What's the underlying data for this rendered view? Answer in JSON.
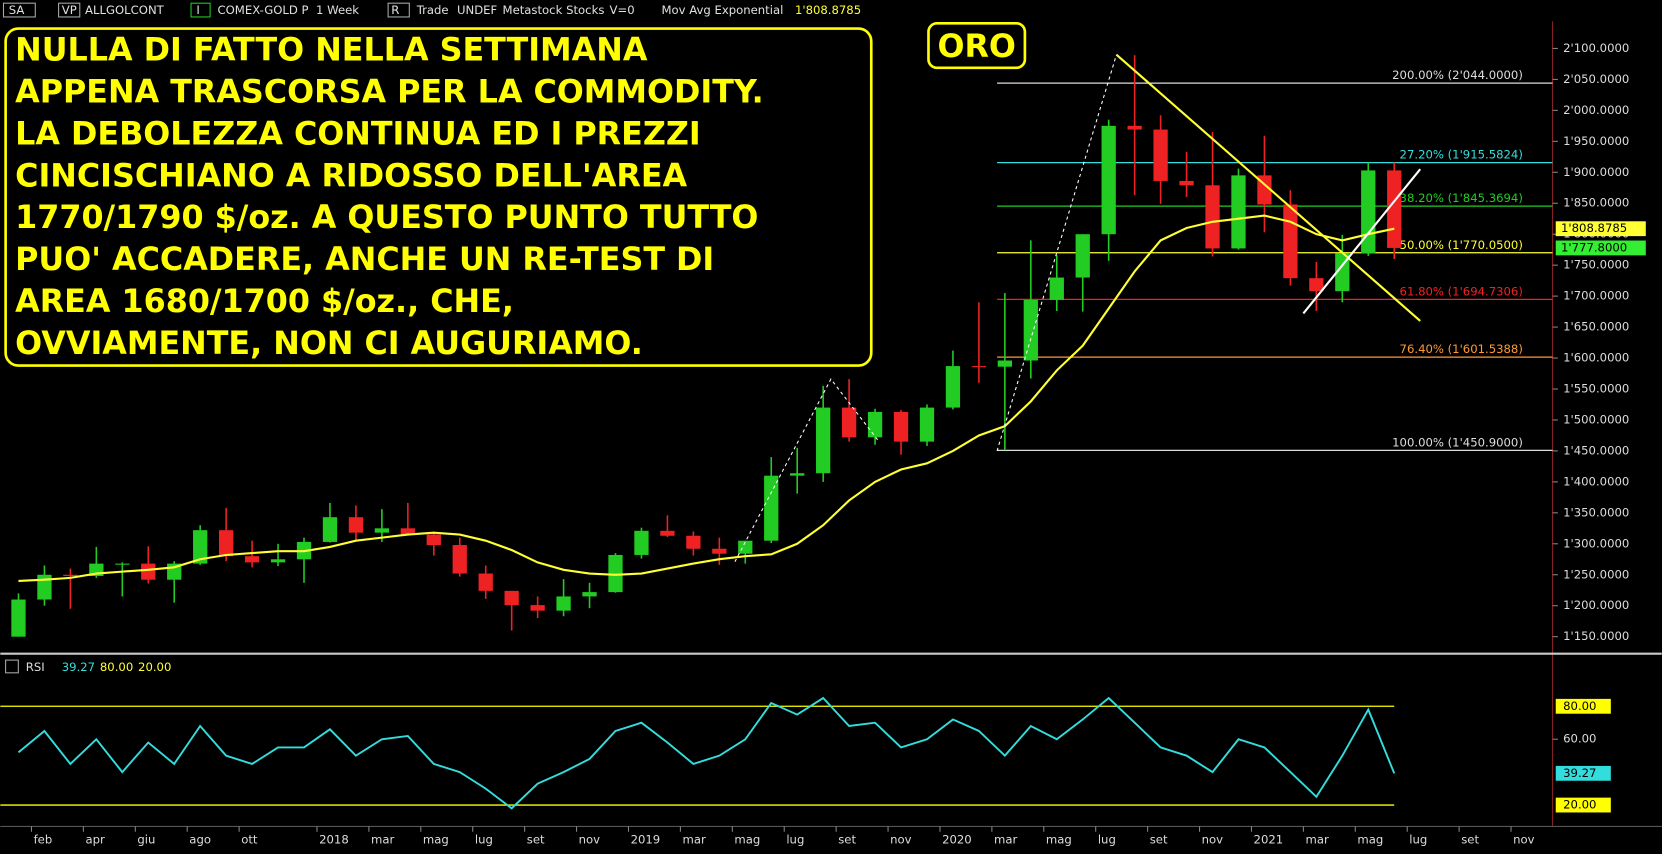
{
  "chart_data": {
    "type": "candlestick",
    "header": [
      "SA",
      "VP",
      "ALLGOLCONT",
      "I",
      "COMEX-GOLD P",
      "1 Week",
      "R",
      "Trade",
      "UNDEF",
      "Metastock",
      "Stocks",
      "V=0",
      "Mov Avg Exponential",
      "1'808.8785"
    ],
    "annotation": [
      "NULLA DI FATTO NELLA SETTIMANA",
      "APPENA TRASCORSA PER LA COMMODITY.",
      "LA DEBOLEZZA CONTINUA ED I PREZZI",
      "CINCISCHIANO A RIDOSSO DELL'AREA",
      "1770/1790 $/oz. A QUESTO PUNTO TUTTO",
      "PUO' ACCADERE, ANCHE UN RE-TEST DI",
      "AREA 1680/1700 $/oz., CHE,",
      "OVVIAMENTE, NON CI AUGURIAMO."
    ],
    "tag": "ORO",
    "x": [
      0.5,
      1.5,
      2.5,
      3.5,
      4.5,
      5.5,
      6.5,
      7.5,
      8.5,
      9.5,
      10.5,
      11.5,
      12.5,
      13.5,
      14.5,
      15.5,
      16.5,
      17.5,
      18.5,
      19.5,
      20.5,
      21.5,
      22.5,
      23.5,
      24.5,
      25.5,
      26.5,
      27.5,
      28.5,
      29.5,
      30.5,
      31.5,
      32.5,
      33.5,
      34.5,
      35.5,
      36.5,
      37.5,
      38.5,
      39.5,
      40.5,
      41.5,
      42.5,
      43.5,
      44.5,
      45.5,
      46.5,
      47.5,
      48.5,
      49.5,
      50.5,
      51.5,
      52.5,
      53.5
    ],
    "up_color": "#22cc22",
    "down_color": "#ee2222",
    "open": [
      1150,
      1210,
      1250,
      1248,
      1268,
      1268,
      1242,
      1268,
      1322,
      1280,
      1270,
      1275,
      1303,
      1343,
      1318,
      1325,
      1315,
      1298,
      1252,
      1224,
      1201,
      1192,
      1215,
      1222,
      1282,
      1321,
      1313,
      1292,
      1284,
      1305,
      1410,
      1414,
      1520,
      1472,
      1513,
      1465,
      1520,
      1587,
      1586,
      1596,
      1694,
      1730,
      1800,
      1975,
      1969,
      1886,
      1879,
      1777,
      1895,
      1848,
      1729,
      1708,
      1769,
      1903
    ],
    "high": [
      1220,
      1265,
      1260,
      1295,
      1270,
      1296,
      1272,
      1330,
      1358,
      1305,
      1300,
      1310,
      1366,
      1362,
      1356,
      1366,
      1318,
      1310,
      1265,
      1224,
      1215,
      1243,
      1237,
      1285,
      1326,
      1346,
      1320,
      1310,
      1305,
      1440,
      1455,
      1555,
      1566,
      1518,
      1516,
      1525,
      1612,
      1690,
      1705,
      1790,
      1766,
      1800,
      1985,
      2089,
      1992,
      1933,
      1965,
      1906,
      1959,
      1871,
      1755,
      1799,
      1916,
      1916
    ],
    "low": [
      1150,
      1200,
      1195,
      1245,
      1215,
      1236,
      1205,
      1266,
      1272,
      1262,
      1264,
      1237,
      1302,
      1306,
      1303,
      1315,
      1281,
      1247,
      1211,
      1160,
      1180,
      1183,
      1196,
      1221,
      1276,
      1311,
      1281,
      1266,
      1268,
      1301,
      1381,
      1400,
      1465,
      1460,
      1444,
      1458,
      1517,
      1560,
      1451,
      1567,
      1676,
      1675,
      1757,
      1863,
      1849,
      1860,
      1764,
      1775,
      1803,
      1717,
      1676,
      1690,
      1765,
      1760
    ],
    "close": [
      1210,
      1250,
      1248,
      1268,
      1268,
      1242,
      1268,
      1322,
      1280,
      1270,
      1275,
      1303,
      1343,
      1318,
      1325,
      1315,
      1298,
      1252,
      1224,
      1201,
      1192,
      1215,
      1222,
      1282,
      1321,
      1313,
      1292,
      1284,
      1305,
      1410,
      1414,
      1520,
      1472,
      1513,
      1465,
      1520,
      1587,
      1586,
      1596,
      1694,
      1730,
      1800,
      1975,
      1969,
      1886,
      1879,
      1777,
      1895,
      1848,
      1729,
      1708,
      1769,
      1903,
      1777.8
    ],
    "close_label": "1'777.8000",
    "close_box_color": "#33ee33",
    "ema": {
      "name": "Mov Avg Exponential",
      "color": "#ffff33",
      "label": "1'808.8785",
      "values": [
        1240,
        1242,
        1245,
        1252,
        1255,
        1258,
        1262,
        1275,
        1282,
        1285,
        1288,
        1288,
        1295,
        1305,
        1310,
        1315,
        1318,
        1315,
        1305,
        1290,
        1270,
        1258,
        1252,
        1250,
        1252,
        1260,
        1268,
        1275,
        1280,
        1283,
        1300,
        1330,
        1370,
        1400,
        1420,
        1430,
        1450,
        1475,
        1490,
        1530,
        1580,
        1620,
        1680,
        1740,
        1790,
        1810,
        1820,
        1825,
        1830,
        1820,
        1800,
        1790,
        1800,
        1808.8785
      ]
    },
    "xlim": [
      -0.2,
      59.6
    ],
    "xticks": [
      {
        "value": 1,
        "label": "feb"
      },
      {
        "value": 3,
        "label": "apr"
      },
      {
        "value": 5,
        "label": "giu"
      },
      {
        "value": 7,
        "label": "ago"
      },
      {
        "value": 9,
        "label": "ott"
      },
      {
        "value": 12,
        "label": "2018"
      },
      {
        "value": 14,
        "label": "mar"
      },
      {
        "value": 16,
        "label": "mag"
      },
      {
        "value": 18,
        "label": "lug"
      },
      {
        "value": 20,
        "label": "set"
      },
      {
        "value": 22,
        "label": "nov"
      },
      {
        "value": 24,
        "label": "2019"
      },
      {
        "value": 26,
        "label": "mar"
      },
      {
        "value": 28,
        "label": "mag"
      },
      {
        "value": 30,
        "label": "lug"
      },
      {
        "value": 32,
        "label": "set"
      },
      {
        "value": 34,
        "label": "nov"
      },
      {
        "value": 36,
        "label": "2020"
      },
      {
        "value": 38,
        "label": "mar"
      },
      {
        "value": 40,
        "label": "mag"
      },
      {
        "value": 42,
        "label": "lug"
      },
      {
        "value": 44,
        "label": "set"
      },
      {
        "value": 46,
        "label": "nov"
      },
      {
        "value": 48,
        "label": "2021"
      },
      {
        "value": 50,
        "label": "mar"
      },
      {
        "value": 52,
        "label": "mag"
      },
      {
        "value": 54,
        "label": "lug"
      },
      {
        "value": 56,
        "label": "set"
      },
      {
        "value": 58,
        "label": "nov"
      }
    ],
    "ylim": [
      1131,
      2144
    ],
    "yticks": [
      {
        "value": 1150,
        "label": "1'150.0000"
      },
      {
        "value": 1200,
        "label": "1'200.0000"
      },
      {
        "value": 1250,
        "label": "1'250.0000"
      },
      {
        "value": 1300,
        "label": "1'300.0000"
      },
      {
        "value": 1350,
        "label": "1'350.0000"
      },
      {
        "value": 1400,
        "label": "1'400.0000"
      },
      {
        "value": 1450,
        "label": "1'450.0000"
      },
      {
        "value": 1500,
        "label": "1'500.0000"
      },
      {
        "value": 1550,
        "label": "1'550.0000"
      },
      {
        "value": 1600,
        "label": "1'600.0000"
      },
      {
        "value": 1650,
        "label": "1'650.0000"
      },
      {
        "value": 1700,
        "label": "1'700.0000"
      },
      {
        "value": 1750,
        "label": "1'750.0000"
      },
      {
        "value": 1800,
        "label": "1'800.0000"
      },
      {
        "value": 1850,
        "label": "1'850.0000"
      },
      {
        "value": 1900,
        "label": "1'900.0000"
      },
      {
        "value": 1950,
        "label": "1'950.0000"
      },
      {
        "value": 2000,
        "label": "2'000.0000"
      },
      {
        "value": 2050,
        "label": "2'050.0000"
      },
      {
        "value": 2100,
        "label": "2'100.0000"
      }
    ],
    "fib_start": 38.2,
    "fib_levels": [
      {
        "value": 2044,
        "label": "200.00% (2'044.0000)",
        "color": "#dddddd"
      },
      {
        "value": 1915.5824,
        "label": "27.20% (1'915.5824)",
        "color": "#33dddd"
      },
      {
        "value": 1845.3694,
        "label": "38.20% (1'845.3694)",
        "color": "#22cc22"
      },
      {
        "value": 1770.05,
        "label": "50.00% (1'770.0500)",
        "color": "#ffff33"
      },
      {
        "value": 1694.7306,
        "label": "61.80% (1'694.7306)",
        "color": "#ee2222"
      },
      {
        "value": 1601.5388,
        "label": "76.40% (1'601.5388)",
        "color": "#ff9933"
      },
      {
        "value": 1450.9,
        "label": "100.00% (1'450.9000)",
        "color": "#dddddd"
      }
    ],
    "trendlines": [
      {
        "color": "#ffff33",
        "dash": false,
        "x": [
          42.8,
          54.5
        ],
        "y": [
          2090,
          1660
        ]
      },
      {
        "color": "#ffffff",
        "dash": false,
        "x": [
          50,
          54.5
        ],
        "y": [
          1672,
          1905
        ]
      },
      {
        "color": "#ffffff",
        "dash": true,
        "x": [
          38.2,
          42.8
        ],
        "y": [
          1450,
          2090
        ]
      },
      {
        "color": "#ffffff",
        "dash": true,
        "x": [
          28.1,
          31.8,
          33.6
        ],
        "y": [
          1271,
          1566,
          1468
        ]
      }
    ],
    "rsi": {
      "type": "line",
      "title": "RSI",
      "color": "#33dddd",
      "value_label": "39.27",
      "ylim": [
        7,
        110
      ],
      "yticks": [
        {
          "value": 60,
          "label": "60.00"
        }
      ],
      "levels": [
        {
          "value": 80,
          "label": "80.00"
        },
        {
          "value": 20,
          "label": "20.00"
        }
      ],
      "level_color": "#ffff00",
      "values": [
        52,
        65,
        45,
        60,
        40,
        58,
        45,
        68,
        50,
        45,
        55,
        55,
        66,
        50,
        60,
        62,
        45,
        40,
        30,
        18,
        33,
        40,
        48,
        65,
        70,
        58,
        45,
        50,
        60,
        82,
        75,
        85,
        68,
        70,
        55,
        60,
        72,
        65,
        50,
        68,
        60,
        72,
        85,
        70,
        55,
        50,
        40,
        60,
        55,
        40,
        25,
        50,
        78,
        39.27
      ]
    }
  }
}
